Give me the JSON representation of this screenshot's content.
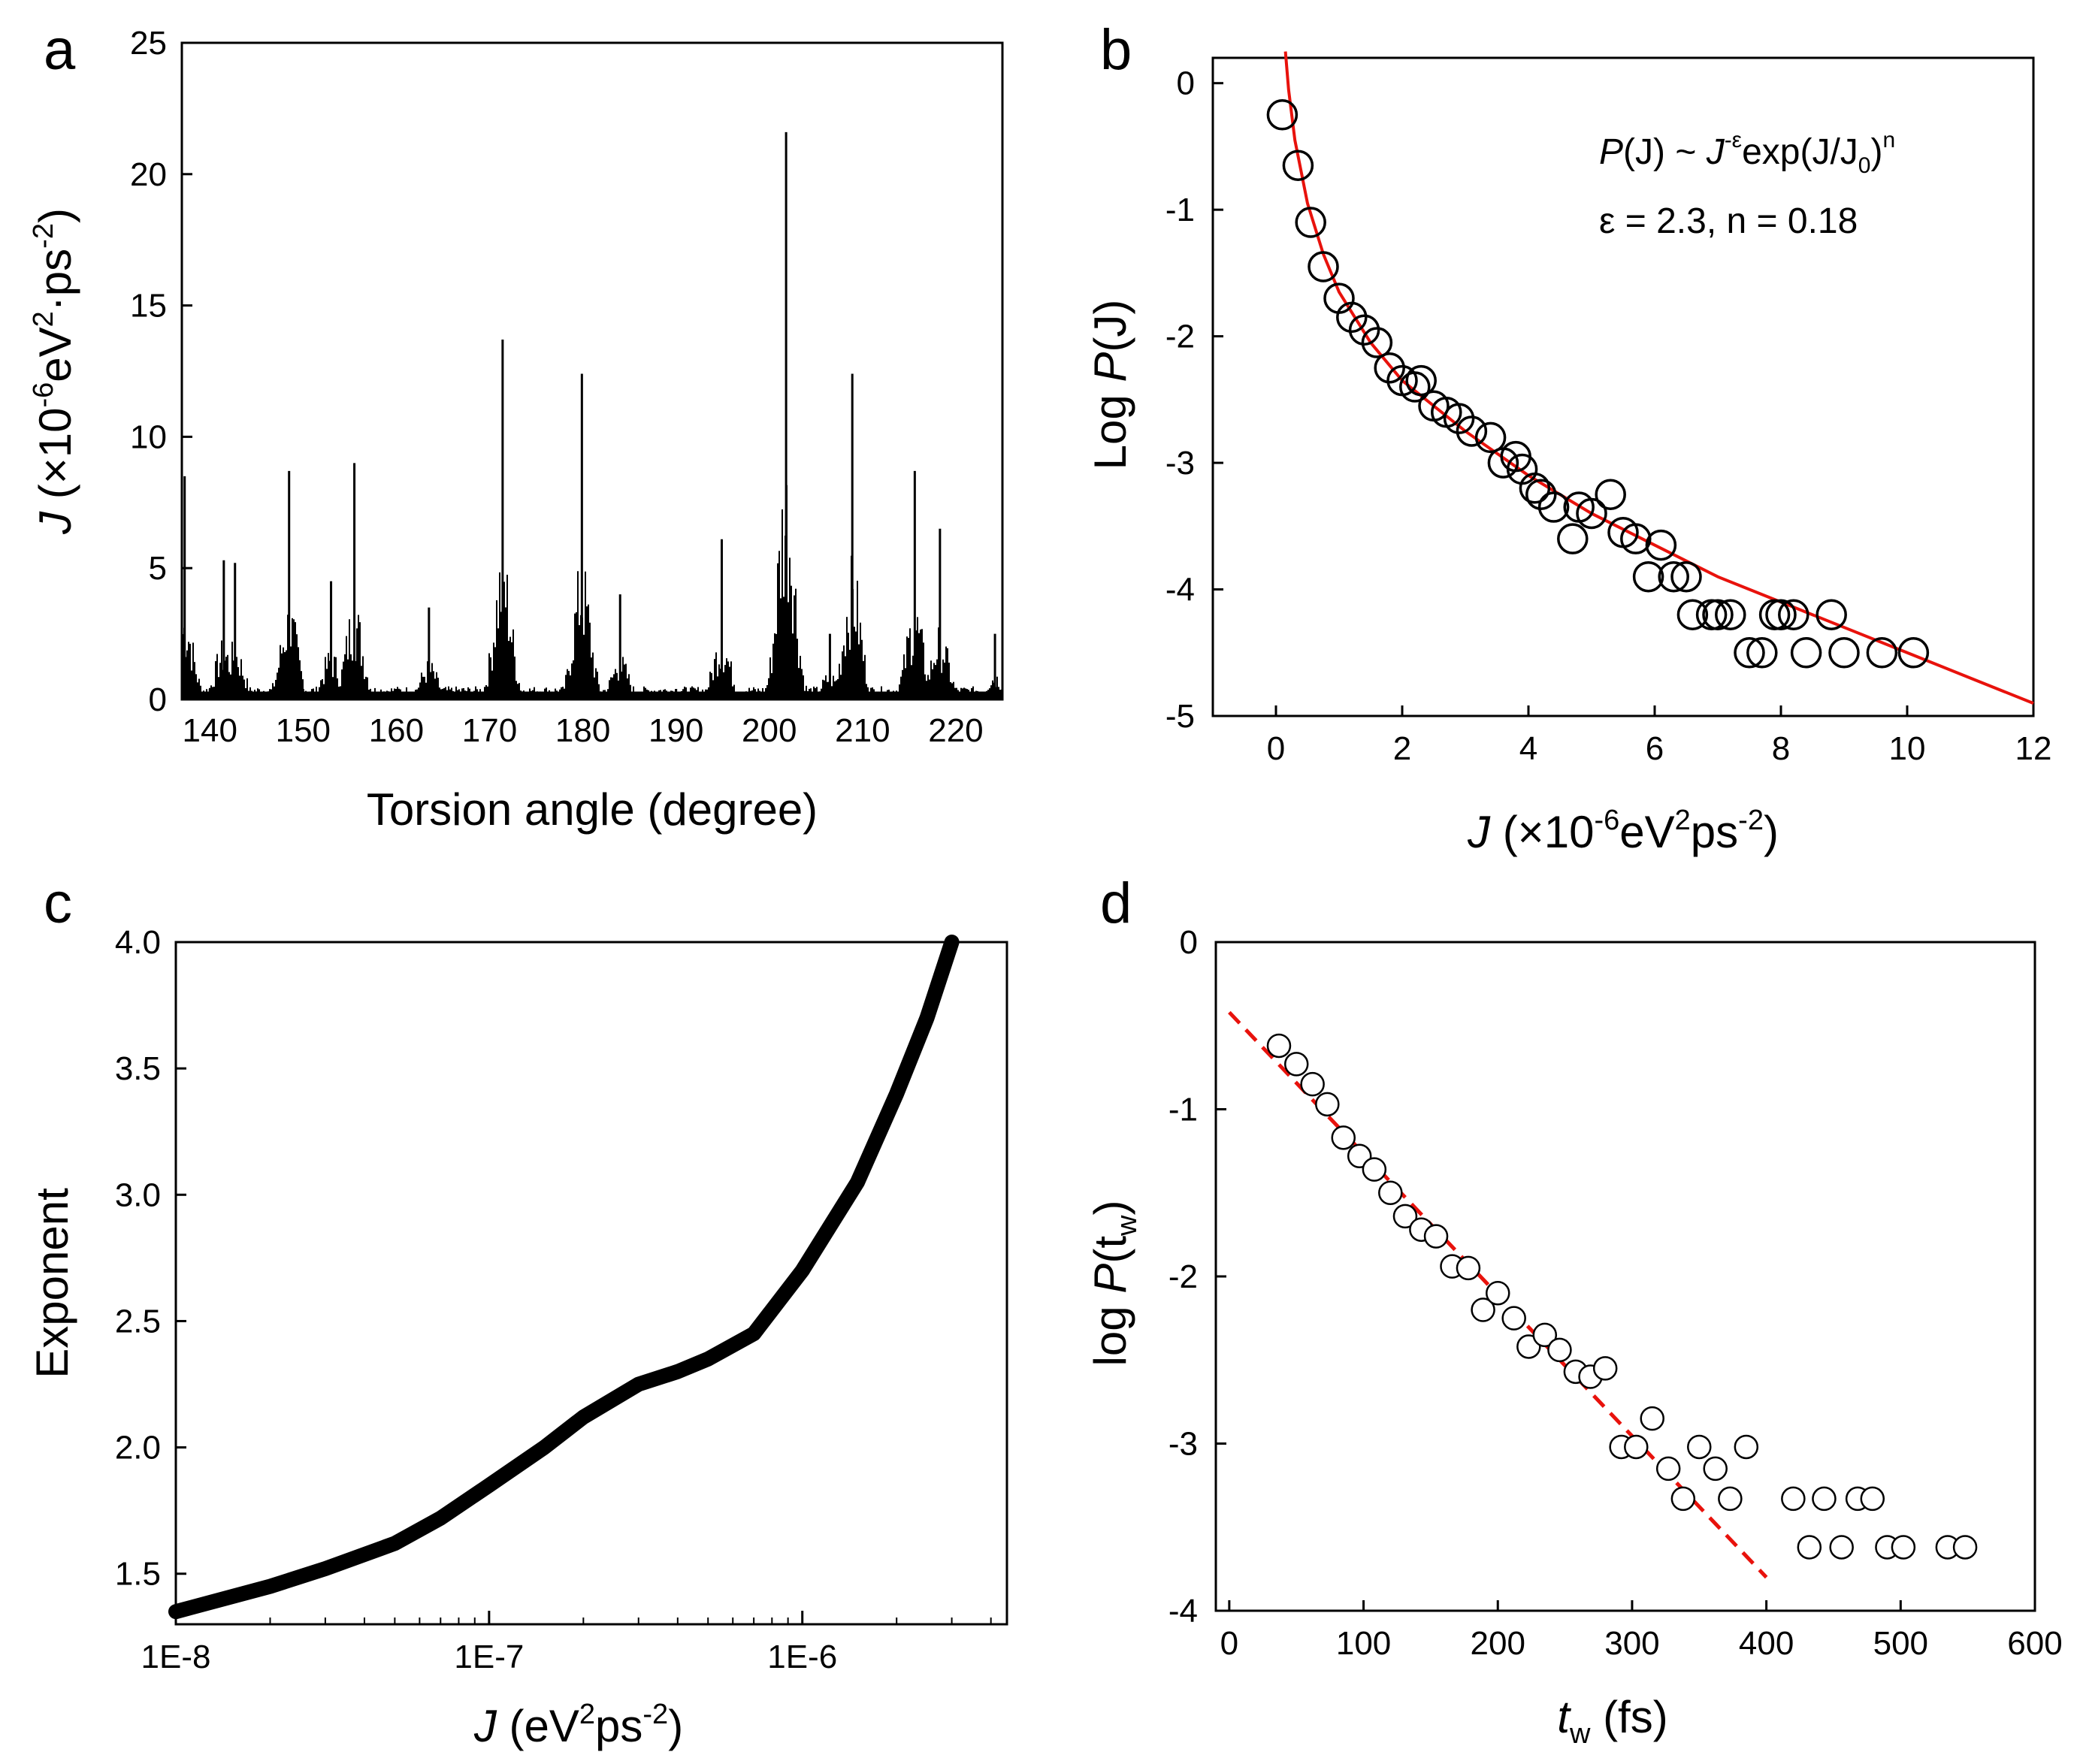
{
  "figure": {
    "chart_data": [
      {
        "panel": "a",
        "type": "bar",
        "title": "",
        "xlabel": "Torsion angle (degree)",
        "ylabel": {
          "prefix": "J",
          "unit_open": " (×10",
          "exp1": "-6",
          "mid": "eV",
          "exp2": "2",
          "mid2": "·ps",
          "exp3": "-2",
          "close": ")"
        },
        "xlim": [
          137,
          225
        ],
        "ylim": [
          0,
          25
        ],
        "xticks": [
          140,
          150,
          160,
          170,
          180,
          190,
          200,
          210,
          220
        ],
        "yticks": [
          0,
          5,
          10,
          15,
          20,
          25
        ],
        "baseline_level": 0.3,
        "peaks": [
          {
            "x": 137.3,
            "value": 8.5
          },
          {
            "x": 141.5,
            "value": 5.3
          },
          {
            "x": 142.7,
            "value": 5.2
          },
          {
            "x": 148.5,
            "value": 8.7
          },
          {
            "x": 155.5,
            "value": 9.0
          },
          {
            "x": 153.0,
            "value": 4.5
          },
          {
            "x": 163.5,
            "value": 3.5
          },
          {
            "x": 171.4,
            "value": 13.7
          },
          {
            "x": 179.9,
            "value": 12.4
          },
          {
            "x": 184.0,
            "value": 4.0
          },
          {
            "x": 194.9,
            "value": 6.1
          },
          {
            "x": 201.8,
            "value": 21.6
          },
          {
            "x": 206.5,
            "value": 2.5
          },
          {
            "x": 208.9,
            "value": 12.4
          },
          {
            "x": 215.6,
            "value": 8.7
          },
          {
            "x": 218.3,
            "value": 6.5
          },
          {
            "x": 224.2,
            "value": 2.5
          }
        ]
      },
      {
        "panel": "b",
        "type": "scatter",
        "title": "",
        "xlabel": {
          "prefix": "J",
          "unit_open": " (×10",
          "exp1": "-6",
          "mid": "eV",
          "exp2": "2",
          "mid2": "ps",
          "exp3": "-2",
          "close": ")"
        },
        "ylabel": {
          "prefix": "Log ",
          "italic": "P",
          "rest": "(J)"
        },
        "xlim": [
          -1,
          12
        ],
        "ylim": [
          -5,
          0.2
        ],
        "xticks": [
          0,
          2,
          4,
          6,
          8,
          10,
          12
        ],
        "yticks": [
          0,
          -1,
          -2,
          -3,
          -4,
          -5
        ],
        "annotation": {
          "line1": {
            "a": "P",
            "b": "(J) ~ ",
            "c": "J",
            "d": "-ε",
            "e": "exp(J/J",
            "f": "0",
            "g": ")",
            "h": "n"
          },
          "line2": "ε = 2.3, n = 0.18"
        },
        "series": [
          {
            "name": "data",
            "marker": "open-circle",
            "x": [
              0.1,
              0.35,
              0.55,
              0.75,
              1.0,
              1.2,
              1.4,
              1.6,
              1.8,
              2.0,
              2.2,
              2.3,
              2.5,
              2.7,
              2.9,
              3.1,
              3.4,
              3.6,
              3.8,
              3.9,
              4.1,
              4.2,
              4.4,
              4.7,
              4.8,
              5.0,
              5.3,
              5.5,
              5.7,
              5.9,
              6.1,
              6.3,
              6.5,
              6.6,
              6.9,
              7.0,
              7.2,
              7.5,
              7.7,
              7.9,
              8.0,
              8.2,
              8.4,
              8.8,
              9.0,
              9.6,
              10.1
            ],
            "y": [
              -0.25,
              -0.65,
              -1.1,
              -1.45,
              -1.7,
              -1.85,
              -1.95,
              -2.05,
              -2.25,
              -2.35,
              -2.4,
              -2.35,
              -2.55,
              -2.6,
              -2.65,
              -2.75,
              -2.8,
              -3.0,
              -2.95,
              -3.05,
              -3.2,
              -3.25,
              -3.35,
              -3.6,
              -3.35,
              -3.4,
              -3.25,
              -3.55,
              -3.6,
              -3.9,
              -3.65,
              -3.9,
              -3.9,
              -4.2,
              -4.2,
              -4.2,
              -4.2,
              -4.5,
              -4.5,
              -4.2,
              -4.2,
              -4.2,
              -4.5,
              -4.2,
              -4.5,
              -4.5,
              -4.5
            ]
          },
          {
            "name": "fit",
            "style": "red-line",
            "epsilon": 2.3,
            "n": 0.18,
            "x": [
              0.15,
              0.2,
              0.3,
              0.5,
              0.75,
              1.0,
              1.5,
              2.0,
              2.5,
              3.0,
              4.0,
              5.0,
              6.0,
              7.0,
              8.0,
              9.0,
              10.0,
              11.0,
              12.0
            ],
            "y": [
              0.25,
              -0.05,
              -0.45,
              -0.95,
              -1.35,
              -1.65,
              -2.05,
              -2.35,
              -2.55,
              -2.75,
              -3.1,
              -3.4,
              -3.65,
              -3.9,
              -4.1,
              -4.3,
              -4.5,
              -4.7,
              -4.9
            ]
          }
        ]
      },
      {
        "panel": "c",
        "type": "line",
        "title": "",
        "xlabel": {
          "prefix": "J",
          "unit_open": " (eV",
          "exp1": "2",
          "mid": "ps",
          "exp2": "-2",
          "close": ")"
        },
        "ylabel": "Exponent",
        "xscale": "log",
        "xlim": [
          1e-08,
          4.5e-06
        ],
        "ylim": [
          1.3,
          4.0
        ],
        "xticks": [
          "1E-8",
          "1E-7",
          "1E-6"
        ],
        "yticks": [
          "1.5",
          "2.0",
          "2.5",
          "3.0",
          "3.5",
          "4.0"
        ],
        "series": [
          {
            "name": "exponent",
            "x": [
              1e-08,
              2e-08,
              3e-08,
              5e-08,
              7e-08,
              1e-07,
              1.5e-07,
              2e-07,
              3e-07,
              4e-07,
              5e-07,
              7e-07,
              1e-06,
              1.5e-06,
              2e-06,
              2.5e-06,
              3e-06
            ],
            "y": [
              1.35,
              1.45,
              1.52,
              1.62,
              1.72,
              1.85,
              2.0,
              2.12,
              2.25,
              2.3,
              2.35,
              2.45,
              2.7,
              3.05,
              3.4,
              3.7,
              4.0
            ]
          }
        ]
      },
      {
        "panel": "d",
        "type": "scatter",
        "title": "",
        "xlabel": {
          "a": "t",
          "b": "w",
          "c": " (fs)"
        },
        "ylabel": {
          "a": "log ",
          "b": "P",
          "c": "(t",
          "d": "w",
          "e": ")"
        },
        "xlim": [
          -10,
          600
        ],
        "ylim": [
          -4,
          0
        ],
        "xticks": [
          0,
          100,
          200,
          300,
          400,
          500,
          600
        ],
        "yticks": [
          0,
          -1,
          -2,
          -3,
          -4
        ],
        "series": [
          {
            "name": "data",
            "marker": "open-circle",
            "x": [
              37,
              50,
              62,
              73,
              85,
              97,
              108,
              120,
              131,
              143,
              154,
              166,
              178,
              189,
              200,
              212,
              223,
              235,
              246,
              258,
              269,
              280,
              292,
              303,
              315,
              327,
              338,
              350,
              362,
              373,
              385,
              420,
              432,
              443,
              456,
              468,
              479,
              490,
              502,
              535,
              548
            ],
            "y": [
              -0.62,
              -0.73,
              -0.85,
              -0.97,
              -1.17,
              -1.28,
              -1.36,
              -1.5,
              -1.64,
              -1.72,
              -1.76,
              -1.94,
              -1.95,
              -2.2,
              -2.1,
              -2.25,
              -2.42,
              -2.35,
              -2.44,
              -2.57,
              -2.6,
              -2.55,
              -3.02,
              -3.02,
              -2.85,
              -3.15,
              -3.33,
              -3.02,
              -3.15,
              -3.33,
              -3.02,
              -3.33,
              -3.62,
              -3.33,
              -3.62,
              -3.33,
              -3.33,
              -3.62,
              -3.62,
              -3.62,
              -3.62
            ]
          },
          {
            "name": "fit",
            "style": "red-dashed",
            "x": [
              0,
              400
            ],
            "y": [
              -0.42,
              -3.8
            ]
          }
        ]
      }
    ]
  }
}
